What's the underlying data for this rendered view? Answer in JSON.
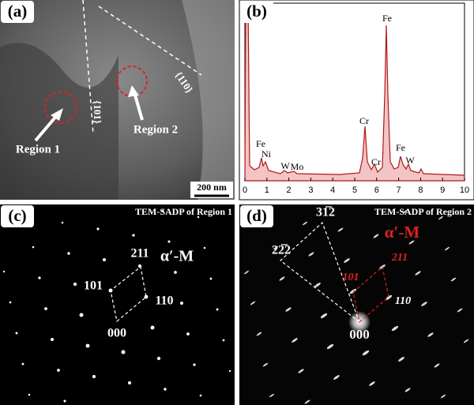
{
  "panels": [
    {
      "label": "(a)",
      "annotations": [
        "{101}",
        "{110}",
        "Region 1",
        "Region 2"
      ],
      "scale_bar": "200 nm"
    },
    {
      "label": "(b)",
      "peaks": [
        "Fe",
        "Ni",
        "W",
        "Mo",
        "Cr",
        "Cr",
        "Fe",
        "Fe",
        "W"
      ],
      "x_ticks": [
        0,
        1,
        2,
        3,
        4,
        5,
        6,
        7,
        8,
        9,
        10
      ]
    },
    {
      "label": "(c)",
      "caption": "TEM-SADP of Region 1",
      "spots": [
        "211",
        "101",
        "110",
        "000"
      ],
      "phase": "α′-M"
    },
    {
      "label": "(d)",
      "caption": "TEM-SADP of Region 2",
      "spots": [
        "31̅2",
        "22̅2",
        "101",
        "211",
        "110",
        "000"
      ],
      "phase": "α′-M"
    }
  ]
}
